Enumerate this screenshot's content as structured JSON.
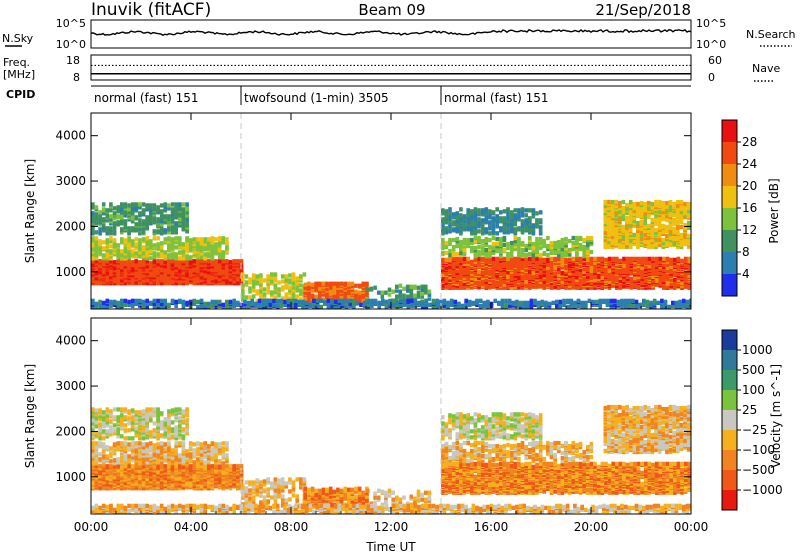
{
  "chart_data": {
    "type": "heatmap",
    "header": {
      "station": "Inuvik (fitACF)",
      "beam": "Beam 09",
      "date": "21/Sep/2018"
    },
    "nsky_panel": {
      "left_label": "N.Sky",
      "left_ticks": [
        "10^5",
        "10^0"
      ],
      "right_ticks": [
        "10^5",
        "10^0"
      ],
      "right_label": "N.Search"
    },
    "freq_panel": {
      "left_label_top": "Freq.",
      "left_label_bottom": "[MHz]",
      "left_ticks": [
        18,
        8
      ],
      "right_ticks": [
        60,
        0
      ],
      "right_label": "Nave",
      "freq_trace_mhz": 10.5,
      "nave_trace": 35
    },
    "cpid": {
      "label": "CPID",
      "segments": [
        {
          "label": "normal (fast) 151",
          "start_h": 0,
          "end_h": 6
        },
        {
          "label": "twofsound (1-min) 3505",
          "start_h": 6,
          "end_h": 14
        },
        {
          "label": "normal (fast) 151",
          "start_h": 14,
          "end_h": 24
        }
      ]
    },
    "x_axis": {
      "label": "Time UT",
      "ticks": [
        "00:00",
        "04:00",
        "08:00",
        "12:00",
        "16:00",
        "20:00",
        "00:00"
      ],
      "range_h": [
        0,
        24
      ]
    },
    "y_axis": {
      "label": "Slant Range [km]",
      "ticks": [
        1000,
        2000,
        3000,
        4000
      ],
      "range_km": [
        180,
        4500
      ]
    },
    "power": {
      "colorbar_label": "Power [dB]",
      "ticks": [
        4,
        8,
        12,
        16,
        20,
        24,
        28
      ],
      "range": [
        0,
        32
      ],
      "colors": [
        "#1f2ee8",
        "#2a7fb0",
        "#3f9160",
        "#7cc23c",
        "#f0c010",
        "#f08c10",
        "#f04a10",
        "#e81010"
      ]
    },
    "velocity": {
      "colorbar_label": "Velocity [m s^-1]",
      "ticks": [
        "1000",
        "500",
        "100",
        "25",
        "−25",
        "−100",
        "−500",
        "−1000"
      ],
      "colors": [
        "#1a3c9c",
        "#2f7a9a",
        "#3c9a6a",
        "#78c43a",
        "#c8c8c0",
        "#f5b020",
        "#f08420",
        "#f05818",
        "#e81a10"
      ]
    },
    "scatter_regions": [
      {
        "t0": 0.0,
        "t1": 6.0,
        "r0": 700,
        "r1": 1200,
        "level": 27,
        "density": 0.85
      },
      {
        "t0": 0.0,
        "t1": 5.5,
        "r0": 1250,
        "r1": 1700,
        "level": 15,
        "density": 0.45
      },
      {
        "t0": 0.0,
        "t1": 3.8,
        "r0": 1800,
        "r1": 2450,
        "level": 10,
        "density": 0.35
      },
      {
        "t0": 6.0,
        "t1": 8.5,
        "r0": 300,
        "r1": 900,
        "level": 16,
        "density": 0.3
      },
      {
        "t0": 8.5,
        "t1": 11.0,
        "r0": 250,
        "r1": 700,
        "level": 25,
        "density": 0.55
      },
      {
        "t0": 11.0,
        "t1": 13.5,
        "r0": 250,
        "r1": 650,
        "level": 10,
        "density": 0.2
      },
      {
        "t0": 14.0,
        "t1": 24.0,
        "r0": 600,
        "r1": 1250,
        "level": 26,
        "density": 0.75
      },
      {
        "t0": 14.0,
        "t1": 20.0,
        "r0": 1300,
        "r1": 1700,
        "level": 14,
        "density": 0.35
      },
      {
        "t0": 14.0,
        "t1": 18.0,
        "r0": 1800,
        "r1": 2350,
        "level": 8,
        "density": 0.35
      },
      {
        "t0": 20.5,
        "t1": 24.0,
        "r0": 1500,
        "r1": 2500,
        "level": 18,
        "density": 0.55
      },
      {
        "t0": 0.0,
        "t1": 24.0,
        "r0": 180,
        "r1": 320,
        "level": 6,
        "density": 0.5
      }
    ]
  }
}
